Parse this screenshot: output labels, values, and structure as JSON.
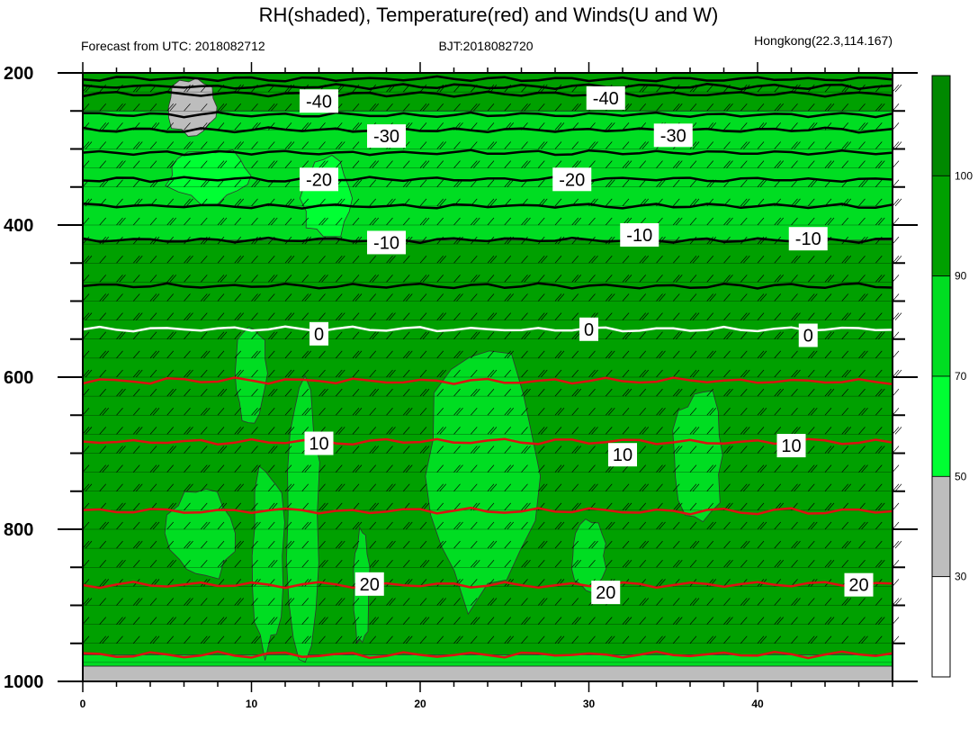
{
  "header": {
    "title": "RH(shaded), Temperature(red) and Winds(U and W)",
    "left_info": "Forecast from UTC: 2018082712",
    "center_info": "BJT:2018082720",
    "right_info": "Hongkong(22.3,114.167)"
  },
  "chart_data": {
    "type": "heatmap",
    "title": "RH(shaded), Temperature(red) and Winds(U and W)",
    "x": {
      "label": "",
      "range": [
        0,
        48
      ],
      "ticks": [
        0,
        10,
        20,
        30,
        40
      ]
    },
    "y": {
      "label": "",
      "range": [
        200,
        1000
      ],
      "inverted": true,
      "ticks": [
        200,
        400,
        600,
        800,
        1000
      ]
    },
    "rh_colorbar": {
      "ticks": [
        30,
        50,
        70,
        90,
        100
      ],
      "bins": [
        {
          "from": 0,
          "to": 30,
          "color": "#ffffff"
        },
        {
          "from": 30,
          "to": 50,
          "color": "#bdbdbd"
        },
        {
          "from": 50,
          "to": 70,
          "color": "#00ff33"
        },
        {
          "from": 70,
          "to": 90,
          "color": "#00dd22"
        },
        {
          "from": 90,
          "to": 100,
          "color": "#00a000"
        },
        {
          "from": 100,
          "to": 110,
          "color": "#008800"
        }
      ]
    },
    "rh_layers": [
      {
        "p_top": 200,
        "p_bot": 250,
        "rh": 95
      },
      {
        "p_top": 250,
        "p_bot": 420,
        "rh": 80
      },
      {
        "p_top": 420,
        "p_bot": 965,
        "rh": 95
      },
      {
        "p_top": 965,
        "p_bot": 980,
        "rh": 80
      },
      {
        "p_top": 980,
        "p_bot": 1000,
        "rh": 40
      }
    ],
    "rh_patches": [
      {
        "rh": 40,
        "x": [
          5,
          8
        ],
        "p": [
          205,
          285
        ]
      },
      {
        "rh": 60,
        "x": [
          5,
          10
        ],
        "p": [
          300,
          370
        ]
      },
      {
        "rh": 60,
        "x": [
          13,
          16
        ],
        "p": [
          310,
          420
        ]
      },
      {
        "rh": 70,
        "x": [
          9,
          11
        ],
        "p": [
          530,
          660
        ]
      },
      {
        "rh": 70,
        "x": [
          12,
          14
        ],
        "p": [
          600,
          960
        ]
      },
      {
        "rh": 70,
        "x": [
          10,
          12
        ],
        "p": [
          710,
          960
        ]
      },
      {
        "rh": 70,
        "x": [
          5,
          9
        ],
        "p": [
          740,
          870
        ]
      },
      {
        "rh": 70,
        "x": [
          16,
          17
        ],
        "p": [
          800,
          960
        ]
      },
      {
        "rh": 70,
        "x": [
          20,
          27
        ],
        "p": [
          560,
          900
        ]
      },
      {
        "rh": 70,
        "x": [
          29,
          31
        ],
        "p": [
          790,
          880
        ]
      },
      {
        "rh": 70,
        "x": [
          35,
          38
        ],
        "p": [
          615,
          790
        ]
      }
    ],
    "temperature_contours": [
      {
        "label": "-40",
        "p": 228
      },
      {
        "label": "-30",
        "p": 275
      },
      {
        "label": "-20",
        "p": 340
      },
      {
        "label": "-10",
        "p": 420
      },
      {
        "label": "0",
        "p": 537
      },
      {
        "label": "10",
        "p": 685
      },
      {
        "label": "20",
        "p": 873
      }
    ],
    "temperature_contour_values_no_label": [
      -50,
      -45,
      -35,
      -25,
      -15,
      -5,
      5,
      15,
      25
    ],
    "temperature_labels": [
      {
        "text": "-40",
        "x": 14,
        "p": 237
      },
      {
        "text": "-40",
        "x": 31,
        "p": 233
      },
      {
        "text": "-30",
        "x": 18,
        "p": 283
      },
      {
        "text": "-30",
        "x": 35,
        "p": 282
      },
      {
        "text": "-20",
        "x": 14,
        "p": 340
      },
      {
        "text": "-20",
        "x": 29,
        "p": 340
      },
      {
        "text": "-10",
        "x": 18,
        "p": 423
      },
      {
        "text": "-10",
        "x": 33,
        "p": 413
      },
      {
        "text": "-10",
        "x": 43,
        "p": 418
      },
      {
        "text": "0",
        "x": 14,
        "p": 543
      },
      {
        "text": "0",
        "x": 30,
        "p": 537
      },
      {
        "text": "0",
        "x": 43,
        "p": 545
      },
      {
        "text": "10",
        "x": 14,
        "p": 687
      },
      {
        "text": "10",
        "x": 32,
        "p": 702
      },
      {
        "text": "10",
        "x": 42,
        "p": 690
      },
      {
        "text": "20",
        "x": 17,
        "p": 872
      },
      {
        "text": "20",
        "x": 31,
        "p": 883
      },
      {
        "text": "20",
        "x": 46,
        "p": 873
      }
    ]
  }
}
